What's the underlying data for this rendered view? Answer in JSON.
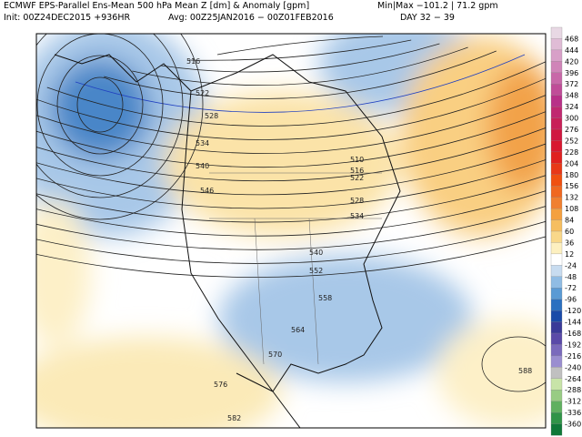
{
  "header": {
    "title": "ECMWF EPS-Parallel Ens-Mean 500 hPa Mean Z [dm] & Anomaly [gpm]",
    "minmax": "Min|Max −101.2 | 71.2 gpm",
    "init": "Init: 00Z24DEC2015 +936HR",
    "avg": "Avg: 00Z25JAN2016 − 00Z01FEB2016",
    "day": "DAY 32 − 39"
  },
  "colorbar": {
    "labels": [
      468,
      444,
      420,
      396,
      372,
      348,
      324,
      300,
      276,
      252,
      228,
      204,
      180,
      156,
      132,
      108,
      84,
      60,
      36,
      12,
      -24,
      -48,
      -72,
      -96,
      -120,
      -144,
      -168,
      -192,
      -216,
      -240,
      -264,
      -288,
      -312,
      -336,
      -360
    ]
  },
  "contour_labels": [
    516,
    522,
    528,
    534,
    540,
    546,
    510,
    516,
    522,
    528,
    534,
    540,
    552,
    558,
    564,
    570,
    576,
    582,
    588
  ]
}
